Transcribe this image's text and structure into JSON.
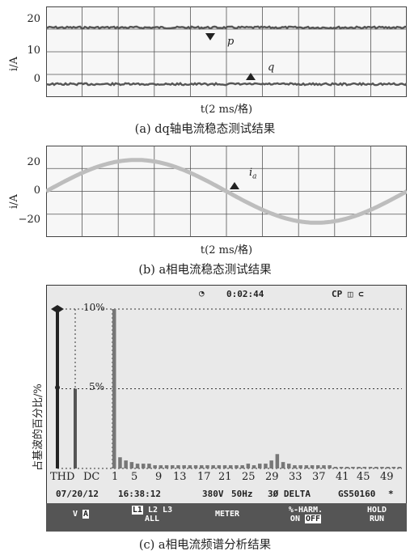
{
  "panel_a": {
    "caption": "(a) dq轴电流稳态测试结果",
    "ylabel": "i/A",
    "xlabel": "t(2 ms/格)",
    "y_ticks": [
      "20",
      "10",
      "0"
    ],
    "labels": {
      "p": "p",
      "q": "q"
    }
  },
  "panel_b": {
    "caption": "(b) a相电流稳态测试结果",
    "ylabel": "i/A",
    "xlabel": "t(2 ms/格)",
    "y_ticks": [
      "20",
      "0",
      "−20"
    ],
    "label_main": "i",
    "label_sub": "a"
  },
  "panel_c": {
    "caption": "(c) a相电流频谱分析结果",
    "ylabel": "占基波的百分比/%",
    "header_time": "0:02:44",
    "header_icons": "CP ◫ ⊂",
    "pct_labels": [
      "10%",
      "5%"
    ],
    "x_labels": [
      "THD",
      "DC",
      "1",
      "5",
      "9",
      "13",
      "17",
      "21",
      "25",
      "29",
      "33",
      "37",
      "41",
      "45",
      "49"
    ],
    "status_date": "07/20/12",
    "status_time": "16:38:12",
    "status_voltage": "380V",
    "status_freq": "50Hz",
    "status_phase": "3Ø DELTA",
    "status_std": "GS50160",
    "status_star": "*",
    "softkeys": {
      "k1a": "V",
      "k1b": "A",
      "k2a": "L1",
      "k2b": "L2",
      "k2c": "L3",
      "k2d": "ALL",
      "k3": "METER",
      "k4a": "%-HARM.",
      "k4b": "ON",
      "k4c": "OFF",
      "k5a": "HOLD",
      "k5b": "RUN"
    }
  },
  "chart_data": [
    {
      "type": "line",
      "title": "",
      "xlabel": "t(2 ms/格)",
      "ylabel": "i/A",
      "ylim": [
        -4,
        24
      ],
      "x_divisions": 10,
      "grid": true,
      "series": [
        {
          "name": "p",
          "values": [
            17.5,
            17.5,
            17.5,
            17.5,
            17.5,
            17.5,
            17.5,
            17.5,
            17.5,
            17.5,
            17.5
          ]
        },
        {
          "name": "q",
          "values": [
            0,
            0,
            0,
            0,
            0,
            0,
            0,
            0,
            0,
            0,
            0
          ]
        }
      ]
    },
    {
      "type": "line",
      "title": "",
      "xlabel": "t(2 ms/格)",
      "ylabel": "i/A",
      "ylim": [
        -32,
        32
      ],
      "x_divisions": 10,
      "grid": true,
      "series": [
        {
          "name": "ia",
          "amplitude": 22,
          "period_divisions": 10,
          "phase_start_deg": 0
        }
      ]
    },
    {
      "type": "bar",
      "title": "",
      "ylabel": "占基波的百分比/%",
      "categories": [
        "THD",
        "DC",
        "1",
        "2",
        "3",
        "4",
        "5",
        "6",
        "7",
        "8",
        "9",
        "10",
        "11",
        "12",
        "13",
        "14",
        "15",
        "16",
        "17",
        "18",
        "19",
        "20",
        "21",
        "22",
        "23",
        "24",
        "25",
        "26",
        "27",
        "28",
        "29",
        "30",
        "31",
        "32",
        "33",
        "34",
        "35",
        "36",
        "37",
        "38",
        "39",
        "40",
        "41",
        "42",
        "43",
        "44",
        "45",
        "46",
        "47",
        "48",
        "49",
        "50"
      ],
      "values": [
        10,
        5,
        10,
        0.7,
        0.5,
        0.4,
        0.3,
        0.3,
        0.3,
        0.2,
        0.2,
        0.2,
        0.2,
        0.2,
        0.2,
        0.2,
        0.2,
        0.2,
        0.2,
        0.2,
        0.2,
        0.2,
        0.2,
        0.2,
        0.2,
        0.3,
        0.2,
        0.3,
        0.3,
        0.5,
        0.9,
        0.4,
        0.3,
        0.2,
        0.2,
        0.2,
        0.2,
        0.2,
        0.2,
        0.2,
        0.1,
        0.1,
        0.1,
        0.1,
        0.1,
        0.1,
        0.1,
        0.1,
        0.1,
        0.1,
        0.1,
        0.1
      ],
      "ylim": [
        0,
        10
      ]
    }
  ]
}
